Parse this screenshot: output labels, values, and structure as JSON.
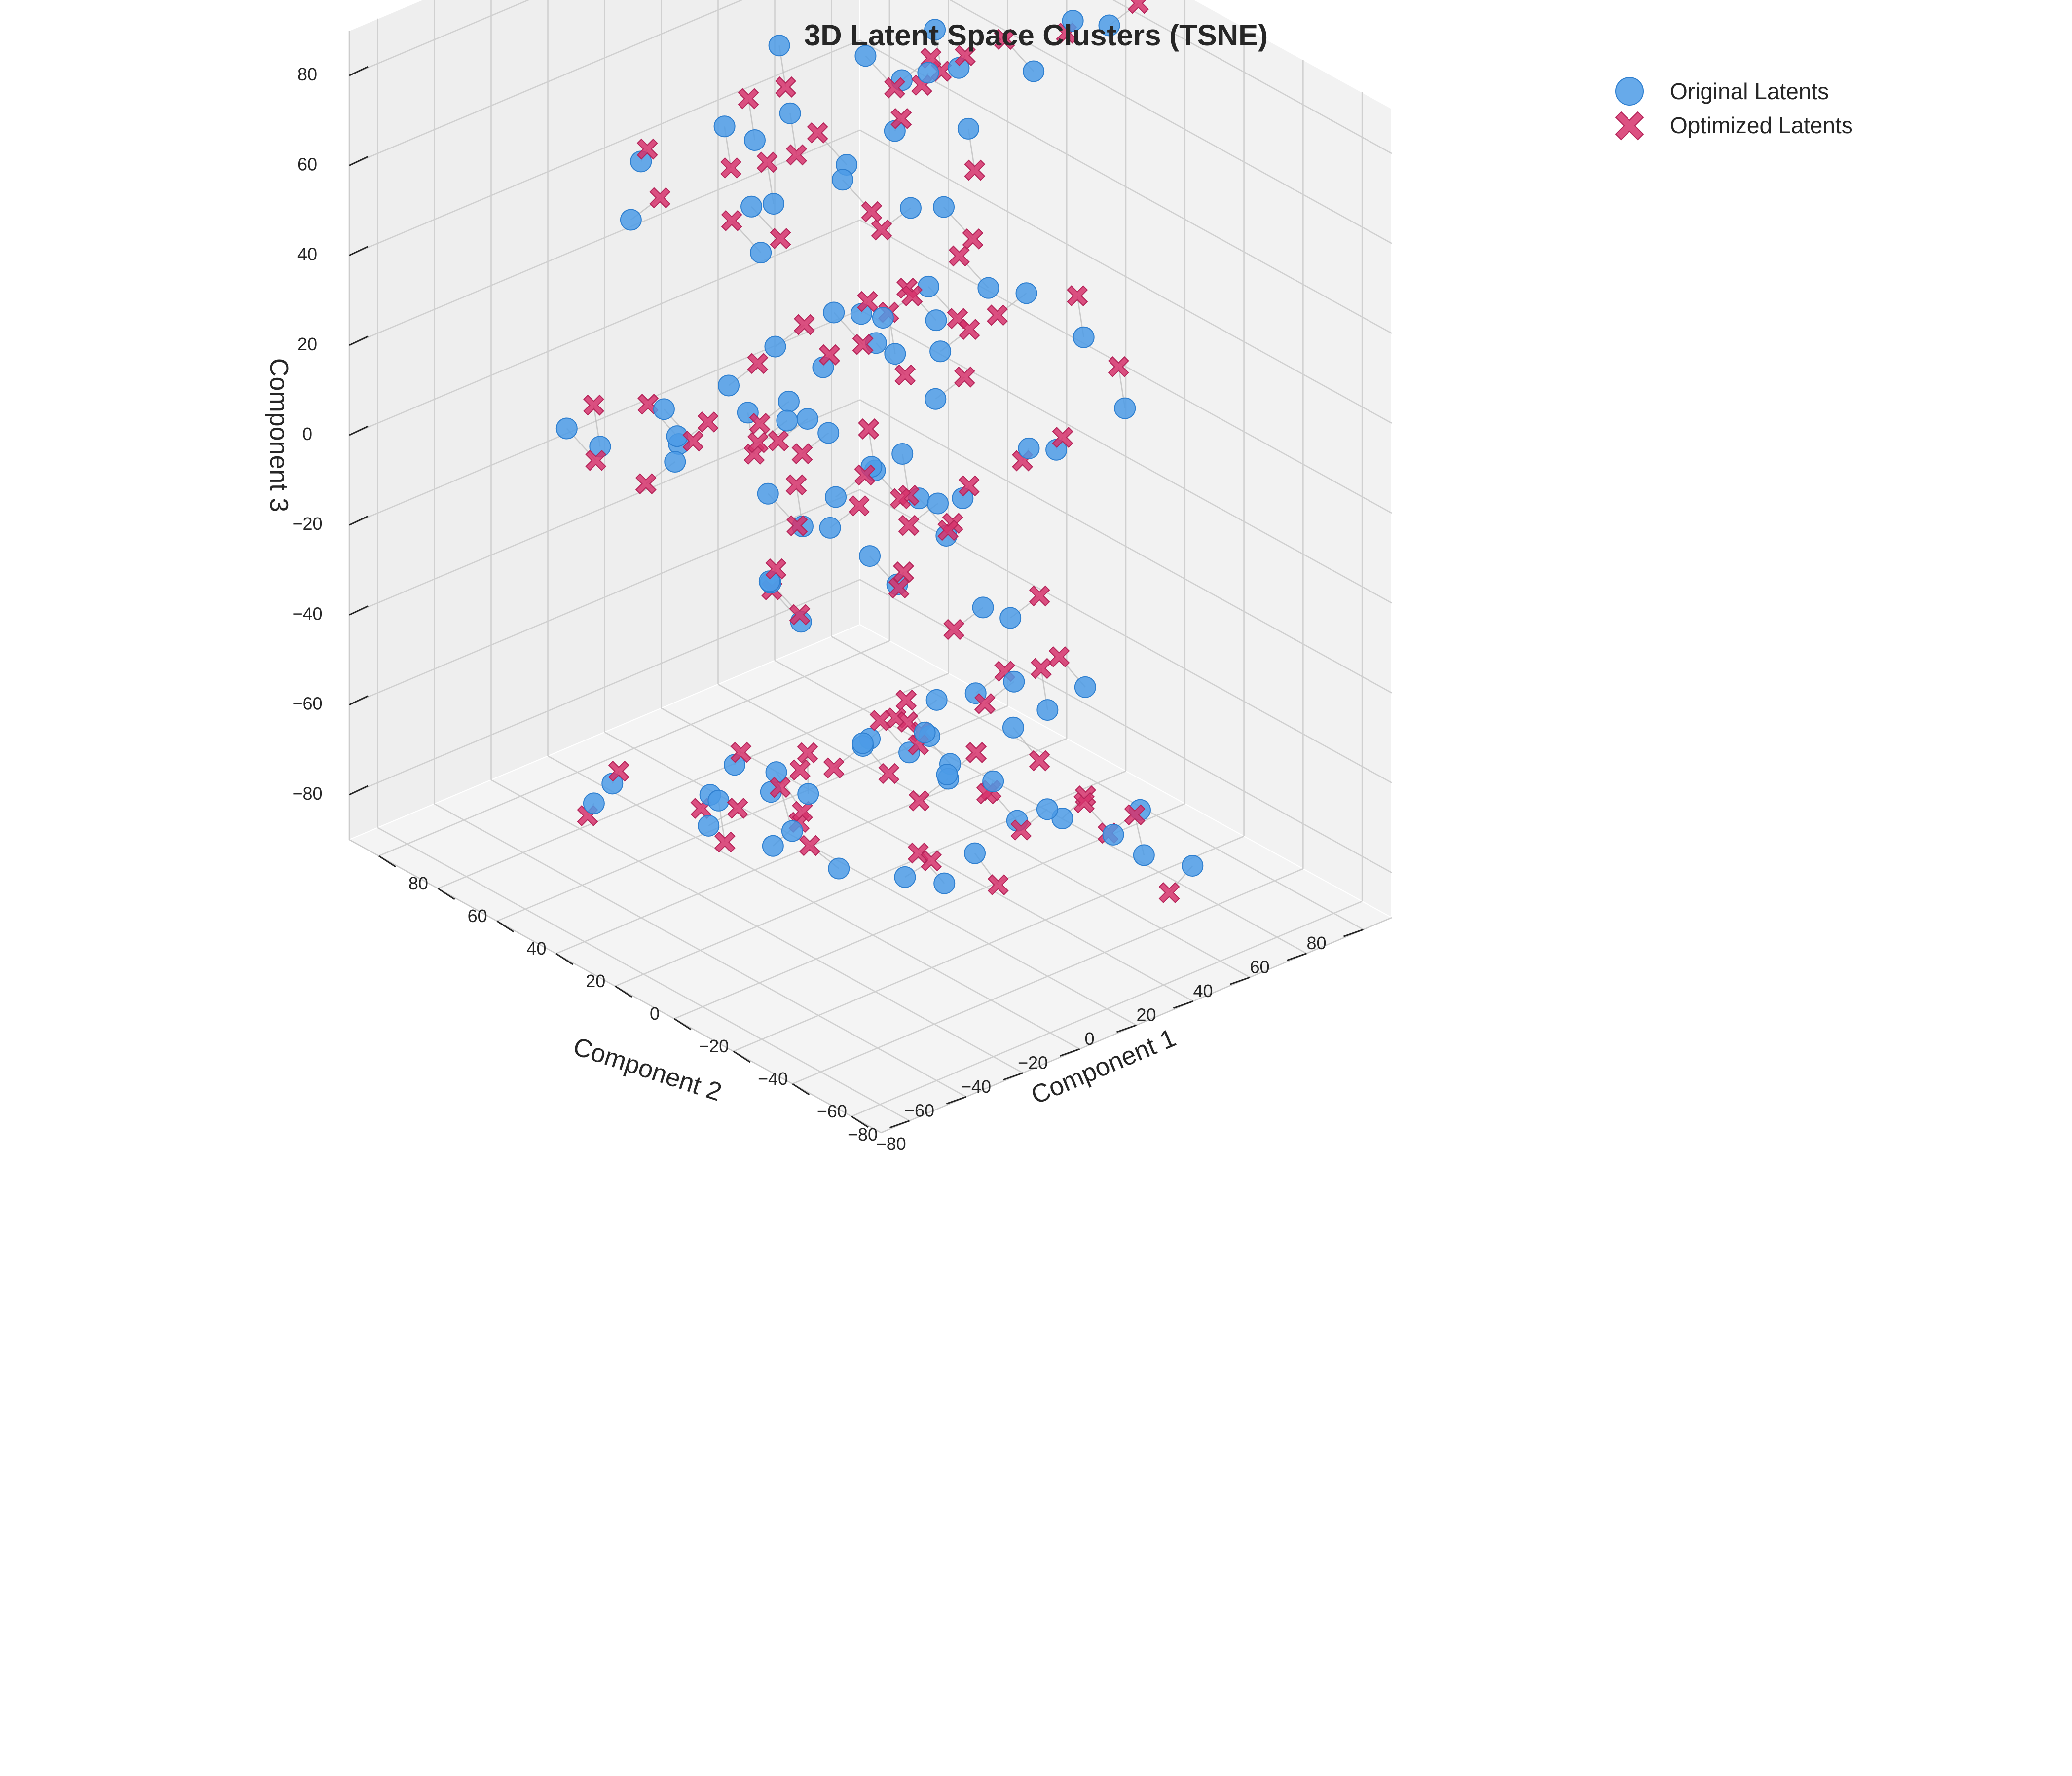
{
  "chart_data": {
    "type": "scatter",
    "projection": "3d",
    "title": "3D Latent Space Clusters (TSNE)",
    "xlabel": "Component 1",
    "ylabel": "Component 2",
    "zlabel": "Component 3",
    "xlim": [
      -90,
      90
    ],
    "ylim": [
      -90,
      90
    ],
    "zlim": [
      -90,
      90
    ],
    "x_ticks": [
      "−80",
      "−60",
      "−40",
      "−20",
      "0",
      "20",
      "40",
      "60",
      "80"
    ],
    "y_ticks": [
      "−80",
      "−60",
      "−40",
      "−20",
      "0",
      "20",
      "40",
      "60",
      "80"
    ],
    "z_ticks": [
      "−80",
      "−60",
      "−40",
      "−20",
      "0",
      "20",
      "40",
      "60",
      "80"
    ],
    "grid": true,
    "legend_position": "top-right",
    "connections": "each original latent joined to its optimized latent by a thin grey line",
    "series": [
      {
        "name": "Original Latents",
        "marker": "circle",
        "color": "#4C9BE6",
        "points": [
          [
            -88,
            -58,
            -35
          ],
          [
            -78,
            -43,
            -30
          ],
          [
            -73,
            -49,
            -34
          ],
          [
            -60,
            -55,
            -24
          ],
          [
            -49,
            -67,
            -21
          ],
          [
            -38,
            -78,
            -30
          ],
          [
            -21,
            -80,
            -40
          ],
          [
            -4,
            -86,
            -48
          ],
          [
            11,
            -82,
            -58
          ],
          [
            25,
            -85,
            -63
          ],
          [
            -80,
            -22,
            -49
          ],
          [
            -64,
            -10,
            -52
          ],
          [
            -50,
            -15,
            -64
          ],
          [
            -32,
            -20,
            -72
          ],
          [
            -17,
            -28,
            -75
          ],
          [
            0,
            -25,
            -82
          ],
          [
            17,
            -19,
            -82
          ],
          [
            34,
            -17,
            -80
          ],
          [
            52,
            -15,
            -85
          ],
          [
            69,
            -25,
            -84
          ],
          [
            -85,
            12,
            -55
          ],
          [
            -66,
            24,
            -60
          ],
          [
            -44,
            12,
            -64
          ],
          [
            -25,
            22,
            -66
          ],
          [
            -8,
            26,
            -78
          ],
          [
            14,
            16,
            -70
          ],
          [
            31,
            30,
            -78
          ],
          [
            51,
            22,
            -86
          ],
          [
            67,
            16,
            -80
          ],
          [
            83,
            7,
            -72
          ],
          [
            -83,
            -45,
            34
          ],
          [
            -69,
            -38,
            44
          ],
          [
            -56,
            -42,
            25
          ],
          [
            -44,
            -28,
            31
          ],
          [
            -33,
            -32,
            22
          ],
          [
            -20,
            -42,
            14
          ],
          [
            -5,
            -36,
            9
          ],
          [
            10,
            -44,
            19
          ],
          [
            28,
            -36,
            11
          ],
          [
            47,
            -41,
            17
          ],
          [
            -78,
            -5,
            37
          ],
          [
            -64,
            4,
            24
          ],
          [
            -50,
            0,
            33
          ],
          [
            -34,
            -5,
            27
          ],
          [
            -17,
            5,
            15
          ],
          [
            3,
            1,
            28
          ],
          [
            20,
            -3,
            30
          ],
          [
            34,
            9,
            15
          ],
          [
            56,
            1,
            25
          ],
          [
            71,
            -4,
            13
          ],
          [
            -80,
            26,
            22
          ],
          [
            -62,
            32,
            11
          ],
          [
            -46,
            22,
            7
          ],
          [
            -29,
            37,
            1
          ],
          [
            -12,
            30,
            6
          ],
          [
            6,
            38,
            13
          ],
          [
            26,
            41,
            2
          ],
          [
            42,
            32,
            4
          ],
          [
            60,
            38,
            12
          ],
          [
            78,
            35,
            8
          ],
          [
            -72,
            -32,
            80
          ],
          [
            -55,
            -20,
            82
          ],
          [
            -39,
            -28,
            86
          ],
          [
            -23,
            -14,
            80
          ],
          [
            -6,
            -14,
            83
          ],
          [
            12,
            -8,
            89
          ],
          [
            28,
            -3,
            84
          ],
          [
            45,
            -12,
            82
          ],
          [
            63,
            -8,
            87
          ],
          [
            80,
            -4,
            80
          ],
          [
            -73,
            11,
            72
          ],
          [
            -58,
            22,
            77
          ],
          [
            -40,
            11,
            84
          ],
          [
            -21,
            19,
            73
          ],
          [
            -3,
            28,
            86
          ],
          [
            17,
            18,
            82
          ],
          [
            35,
            23,
            70
          ],
          [
            55,
            31,
            73
          ],
          [
            71,
            30,
            80
          ],
          [
            86,
            32,
            85
          ],
          [
            -48,
            -72,
            -28
          ],
          [
            -60,
            -76,
            -14
          ],
          [
            -33,
            -58,
            -38
          ],
          [
            -14,
            -62,
            -20
          ],
          [
            2,
            -58,
            -32
          ],
          [
            -28,
            -40,
            -40
          ],
          [
            -10,
            -32,
            -36
          ],
          [
            10,
            -26,
            -42
          ],
          [
            23,
            -16,
            -30
          ],
          [
            41,
            -8,
            -40
          ],
          [
            -30,
            5,
            -18
          ],
          [
            -12,
            12,
            -34
          ],
          [
            6,
            6,
            -22
          ],
          [
            24,
            14,
            -36
          ],
          [
            40,
            22,
            -24
          ],
          [
            58,
            30,
            -40
          ],
          [
            -40,
            -26,
            56
          ],
          [
            -22,
            -18,
            48
          ],
          [
            -6,
            -10,
            40
          ],
          [
            10,
            -4,
            58
          ],
          [
            30,
            4,
            50
          ],
          [
            47,
            12,
            60
          ],
          [
            -46,
            -10,
            -8
          ],
          [
            -26,
            -2,
            -4
          ],
          [
            -8,
            6,
            -12
          ],
          [
            12,
            10,
            -6
          ],
          [
            30,
            18,
            -10
          ],
          [
            50,
            26,
            -6
          ],
          [
            8,
            48,
            40
          ],
          [
            30,
            56,
            52
          ]
        ]
      },
      {
        "name": "Optimized Latents",
        "marker": "x",
        "color": "#D6336C",
        "points": [
          [
            -86,
            -52,
            -28
          ],
          [
            -74,
            -48,
            -38
          ],
          [
            -68,
            -44,
            -28
          ],
          [
            -56,
            -60,
            -30
          ],
          [
            -52,
            -62,
            -14
          ],
          [
            -34,
            -72,
            -36
          ],
          [
            -24,
            -74,
            -46
          ],
          [
            -8,
            -80,
            -42
          ],
          [
            14,
            -76,
            -52
          ],
          [
            22,
            -80,
            -70
          ],
          [
            -76,
            -28,
            -44
          ],
          [
            -68,
            -16,
            -58
          ],
          [
            -46,
            -20,
            -58
          ],
          [
            -36,
            -14,
            -68
          ],
          [
            -14,
            -34,
            -70
          ],
          [
            -4,
            -20,
            -76
          ],
          [
            20,
            -24,
            -88
          ],
          [
            30,
            -12,
            -74
          ],
          [
            55,
            -20,
            -79
          ],
          [
            64,
            -19,
            -90
          ],
          [
            -81,
            18,
            -61
          ],
          [
            -70,
            18,
            -54
          ],
          [
            -41,
            18,
            -70
          ],
          [
            -29,
            16,
            -60
          ],
          [
            -4,
            20,
            -72
          ],
          [
            10,
            22,
            -76
          ],
          [
            34,
            24,
            -72
          ],
          [
            47,
            28,
            -80
          ],
          [
            70,
            10,
            -86
          ],
          [
            79,
            12,
            -66
          ],
          [
            -79,
            -51,
            28
          ],
          [
            -73,
            -32,
            38
          ],
          [
            -52,
            -48,
            31
          ],
          [
            -47,
            -22,
            25
          ],
          [
            -29,
            -38,
            16
          ],
          [
            -24,
            -36,
            8
          ],
          [
            -9,
            -42,
            15
          ],
          [
            14,
            -38,
            13
          ],
          [
            24,
            -42,
            17
          ],
          [
            51,
            -35,
            23
          ],
          [
            -74,
            -11,
            31
          ],
          [
            -68,
            10,
            30
          ],
          [
            -46,
            -6,
            39
          ],
          [
            -38,
            1,
            21
          ],
          [
            -21,
            11,
            9
          ],
          [
            7,
            -5,
            22
          ],
          [
            16,
            3,
            36
          ],
          [
            38,
            3,
            21
          ],
          [
            52,
            7,
            19
          ],
          [
            75,
            2,
            19
          ],
          [
            -76,
            20,
            16
          ],
          [
            -58,
            38,
            17
          ],
          [
            -50,
            28,
            1
          ],
          [
            -25,
            31,
            7
          ],
          [
            -16,
            24,
            0
          ],
          [
            10,
            32,
            19
          ],
          [
            22,
            35,
            8
          ],
          [
            46,
            38,
            10
          ],
          [
            64,
            32,
            6
          ],
          [
            74,
            41,
            14
          ],
          [
            -76,
            -26,
            86
          ],
          [
            -51,
            -14,
            88
          ],
          [
            -35,
            -34,
            80
          ],
          [
            -27,
            -8,
            86
          ],
          [
            -10,
            -20,
            89
          ],
          [
            16,
            -2,
            83
          ],
          [
            24,
            -9,
            90
          ],
          [
            41,
            -6,
            88
          ],
          [
            67,
            -2,
            81
          ],
          [
            84,
            -10,
            86
          ],
          [
            -69,
            5,
            78
          ],
          [
            -62,
            16,
            83
          ],
          [
            -44,
            5,
            78
          ],
          [
            -17,
            25,
            79
          ],
          [
            -7,
            22,
            80
          ],
          [
            21,
            12,
            76
          ],
          [
            39,
            17,
            76
          ],
          [
            51,
            25,
            67
          ],
          [
            67,
            24,
            86
          ],
          [
            90,
            26,
            79
          ],
          [
            -44,
            -78,
            -22
          ],
          [
            -56,
            -70,
            -20
          ],
          [
            -37,
            -52,
            -44
          ],
          [
            -18,
            -56,
            -26
          ],
          [
            6,
            -52,
            -26
          ],
          [
            -32,
            -34,
            -34
          ],
          [
            -14,
            -26,
            -42
          ],
          [
            14,
            -32,
            -36
          ],
          [
            19,
            -10,
            -36
          ],
          [
            45,
            -14,
            -34
          ],
          [
            -26,
            -1,
            -24
          ],
          [
            -16,
            18,
            -28
          ],
          [
            10,
            0,
            -28
          ],
          [
            20,
            8,
            -30
          ],
          [
            44,
            16,
            -30
          ],
          [
            54,
            24,
            -34
          ],
          [
            -36,
            -32,
            50
          ],
          [
            -26,
            -24,
            54
          ],
          [
            -2,
            -16,
            46
          ],
          [
            6,
            2,
            52
          ],
          [
            34,
            -2,
            44
          ],
          [
            43,
            6,
            54
          ],
          [
            -50,
            -16,
            -2
          ],
          [
            -22,
            4,
            2
          ],
          [
            -4,
            0,
            -6
          ],
          [
            16,
            16,
            0
          ],
          [
            26,
            12,
            -16
          ],
          [
            54,
            20,
            0
          ],
          [
            12,
            42,
            34
          ],
          [
            26,
            50,
            46
          ]
        ]
      }
    ]
  }
}
